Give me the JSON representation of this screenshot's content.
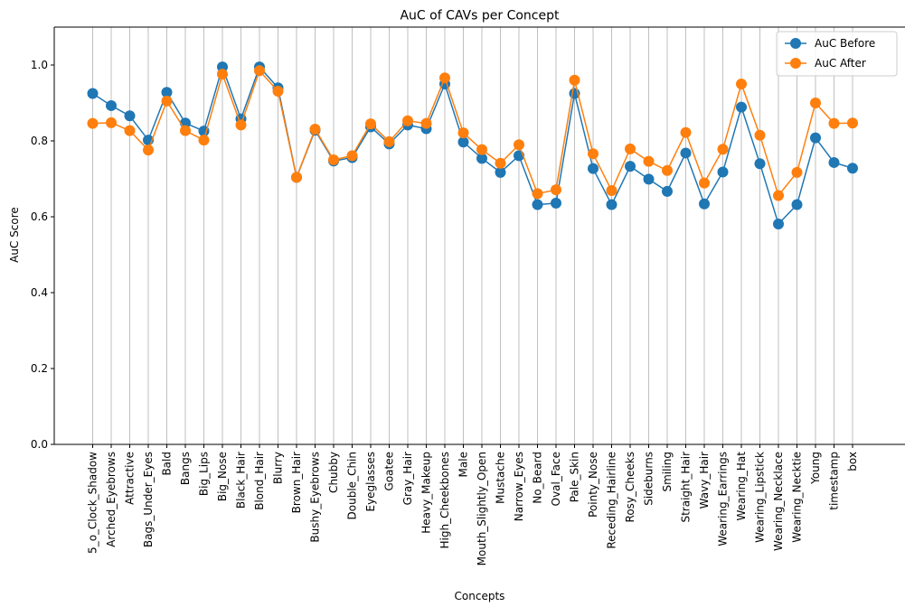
{
  "chart_data": {
    "type": "line",
    "title": "AuC of CAVs per Concept",
    "xlabel": "Concepts",
    "ylabel": "AuC Score",
    "ylim": [
      0,
      1.1
    ],
    "yticks": [
      "0.0",
      "0.2",
      "0.4",
      "0.6",
      "0.8",
      "1.0"
    ],
    "grid": "vertical",
    "legend_position": "top-right",
    "categories": [
      "5_o_Clock_Shadow",
      "Arched_Eyebrows",
      "Attractive",
      "Bags_Under_Eyes",
      "Bald",
      "Bangs",
      "Big_Lips",
      "Big_Nose",
      "Black_Hair",
      "Blond_Hair",
      "Blurry",
      "Brown_Hair",
      "Bushy_Eyebrows",
      "Chubby",
      "Double_Chin",
      "Eyeglasses",
      "Goatee",
      "Gray_Hair",
      "Heavy_Makeup",
      "High_Cheekbones",
      "Male",
      "Mouth_Slightly_Open",
      "Mustache",
      "Narrow_Eyes",
      "No_Beard",
      "Oval_Face",
      "Pale_Skin",
      "Pointy_Nose",
      "Receding_Hairline",
      "Rosy_Cheeks",
      "Sideburns",
      "Smiling",
      "Straight_Hair",
      "Wavy_Hair",
      "Wearing_Earrings",
      "Wearing_Hat",
      "Wearing_Lipstick",
      "Wearing_Necklace",
      "Wearing_Necktie",
      "Young",
      "timestamp",
      "box"
    ],
    "series": [
      {
        "name": "AuC Before",
        "color": "#1f77b4",
        "values": [
          0.925,
          0.893,
          0.866,
          0.802,
          0.928,
          0.847,
          0.826,
          0.995,
          0.858,
          0.995,
          0.94,
          0.704,
          0.828,
          0.747,
          0.756,
          0.837,
          0.792,
          0.842,
          0.832,
          0.95,
          0.797,
          0.754,
          0.717,
          0.761,
          0.632,
          0.636,
          0.925,
          0.727,
          0.632,
          0.733,
          0.699,
          0.667,
          0.768,
          0.634,
          0.718,
          0.889,
          0.74,
          0.581,
          0.632,
          0.808,
          0.743,
          0.728
        ]
      },
      {
        "name": "AuC After",
        "color": "#ff7f0e",
        "values": [
          0.846,
          0.848,
          0.827,
          0.776,
          0.905,
          0.827,
          0.802,
          0.976,
          0.842,
          0.985,
          0.931,
          0.704,
          0.831,
          0.75,
          0.761,
          0.845,
          0.798,
          0.853,
          0.846,
          0.966,
          0.821,
          0.777,
          0.741,
          0.79,
          0.661,
          0.671,
          0.96,
          0.766,
          0.669,
          0.779,
          0.746,
          0.722,
          0.822,
          0.689,
          0.778,
          0.95,
          0.815,
          0.656,
          0.717,
          0.9,
          0.846,
          0.847
        ]
      }
    ]
  }
}
